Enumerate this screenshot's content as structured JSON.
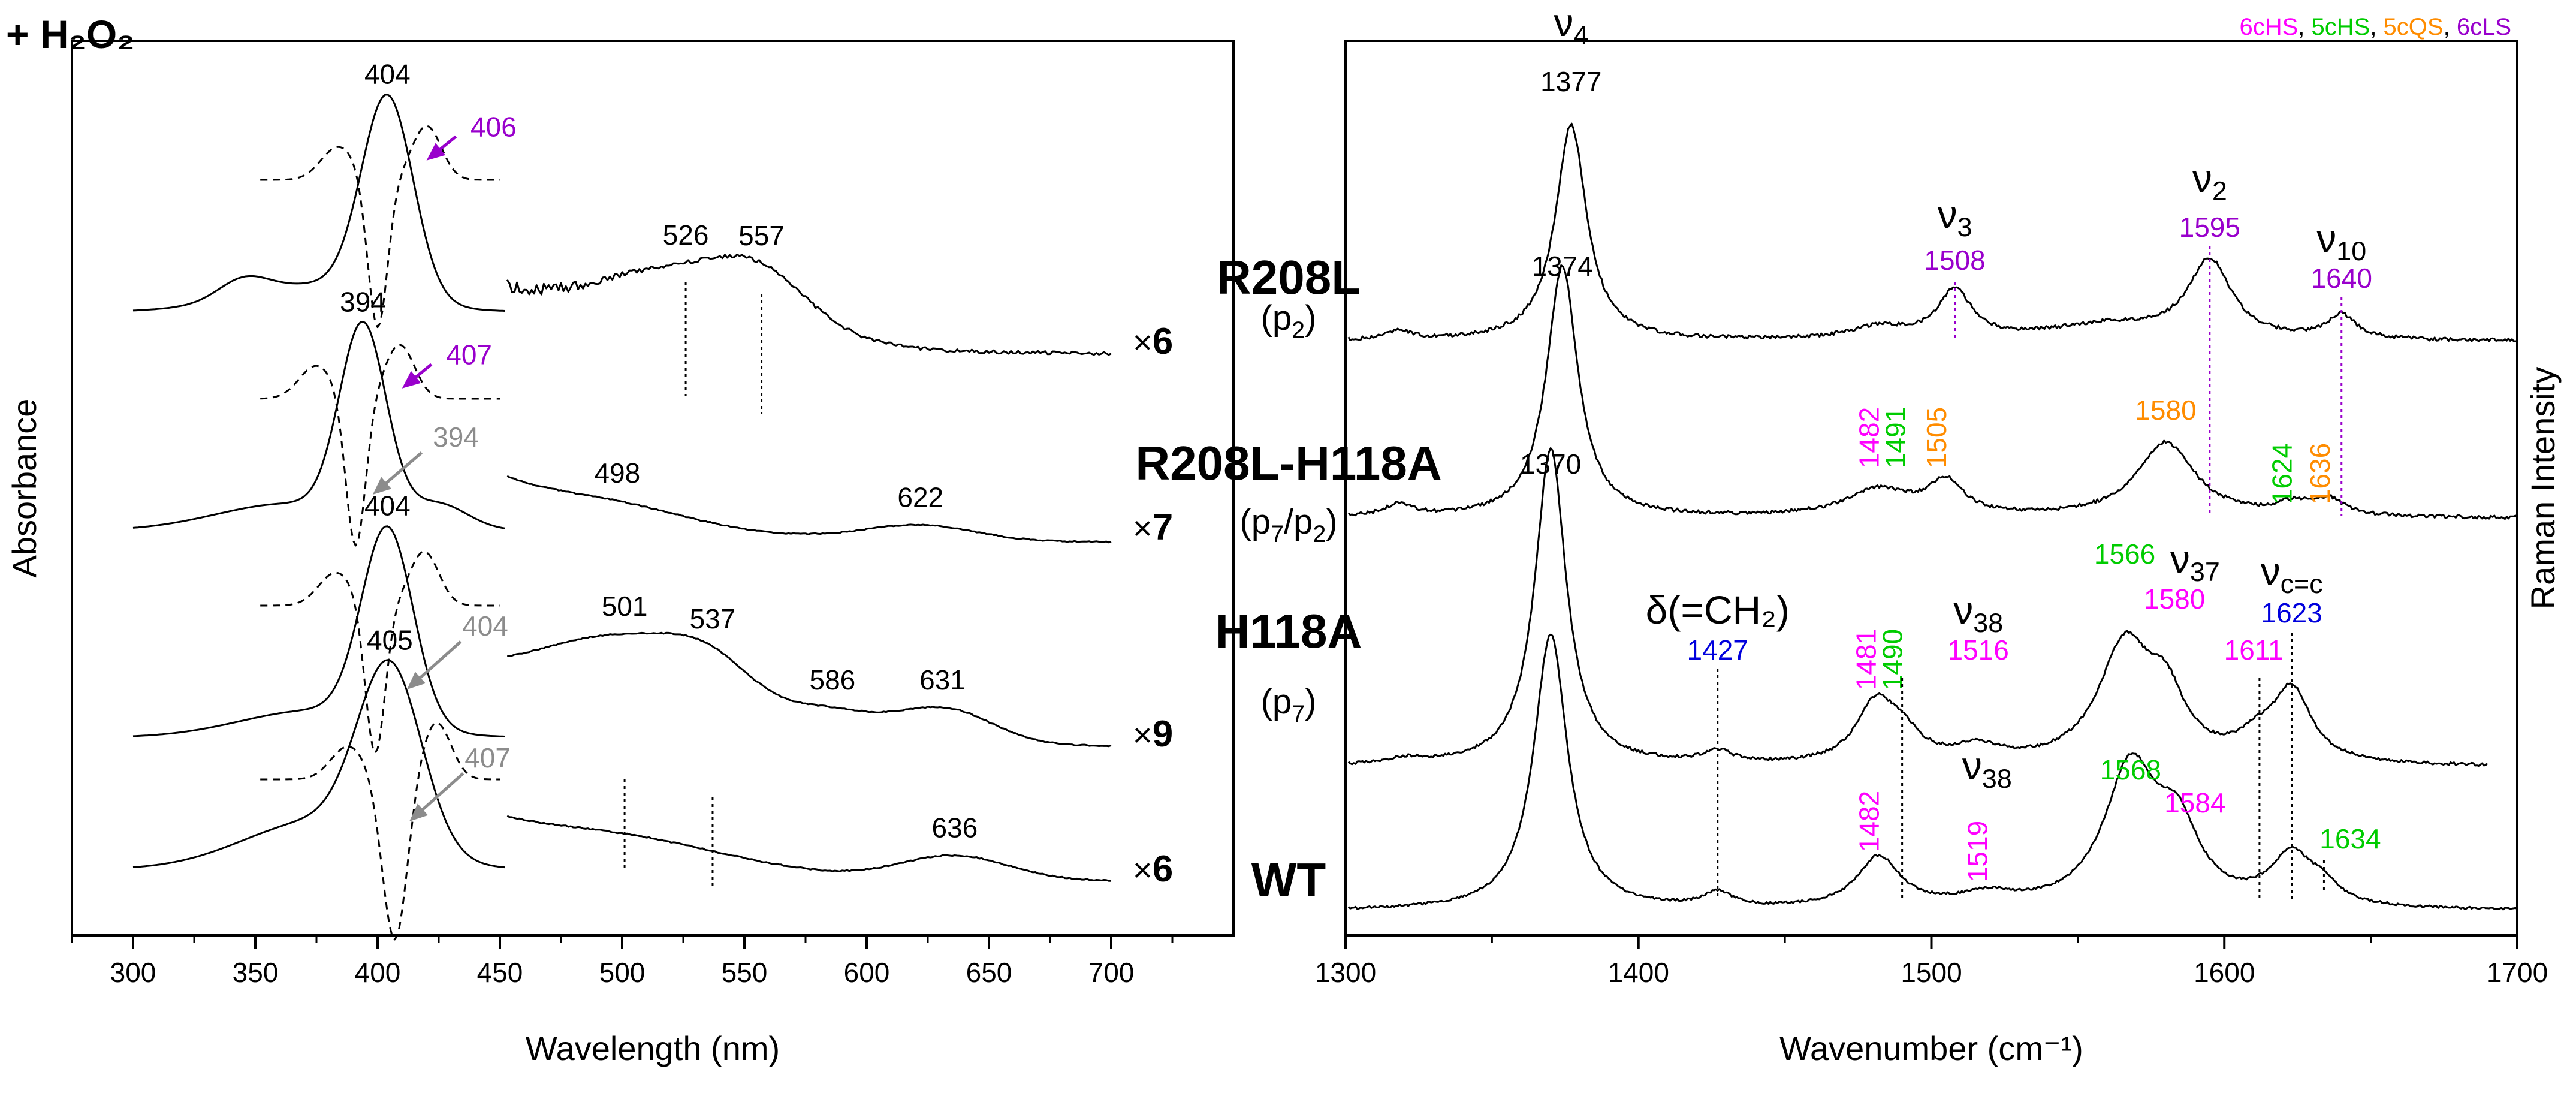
{
  "figure": {
    "reagent_label": "+ H₂O₂",
    "legend": [
      {
        "label": "6cHS",
        "color": "#ff00ff"
      },
      {
        "label": "5cHS",
        "color": "#00cc00"
      },
      {
        "label": "5cQS",
        "color": "#ff8c00"
      },
      {
        "label": "6cLS",
        "color": "#9900cc"
      }
    ],
    "legend_separator": ", ",
    "samples": [
      {
        "name": "R208L",
        "state": "(p₂)"
      },
      {
        "name": "R208L-H118A",
        "state": "(p₇/p₂)"
      },
      {
        "name": "H118A",
        "state": "(p₇)"
      },
      {
        "name": "WT",
        "state": ""
      }
    ],
    "multiplier_symbol": "×",
    "multipliers": [
      "6",
      "7",
      "9",
      "6"
    ],
    "colors": {
      "black": "#000000",
      "gray": "#8c8c8c",
      "blue": "#0000dd"
    }
  },
  "chart_data": [
    {
      "id": "absorbance",
      "type": "line",
      "xlabel": "Wavelength (nm)",
      "ylabel": "Absorbance",
      "xlim": [
        275,
        750
      ],
      "xticks": [
        "300",
        "350",
        "400",
        "450",
        "500",
        "550",
        "600",
        "650",
        "700"
      ],
      "series": [
        {
          "name": "R208L",
          "soret_peak": "404",
          "difference_peak": "406",
          "difference_color": "#9900cc",
          "visible_peaks": [
            "526",
            "557"
          ]
        },
        {
          "name": "R208L-H118A",
          "soret_peak": "394",
          "difference_peak": "407",
          "difference_color": "#9900cc",
          "second_difference_peak": "394",
          "visible_peaks": [
            "498",
            "622"
          ]
        },
        {
          "name": "H118A",
          "soret_peak": "404",
          "difference_peak": "404",
          "difference_color": "#8c8c8c",
          "visible_peaks": [
            "501",
            "537",
            "586",
            "631"
          ]
        },
        {
          "name": "WT",
          "soret_peak": "405",
          "difference_peak": "407",
          "difference_color": "#8c8c8c",
          "visible_peaks": [
            "636"
          ]
        }
      ]
    },
    {
      "id": "raman",
      "type": "line",
      "xlabel": "Wavenumber (cm⁻¹)",
      "ylabel": "Raman Intensity",
      "xlim": [
        1300,
        1700
      ],
      "xticks": [
        "1300",
        "1400",
        "1500",
        "1600",
        "1700"
      ],
      "series": [
        {
          "name": "R208L",
          "peaks": [
            {
              "label": "1377",
              "x": 1377,
              "color": "#000000",
              "mode": "ν4"
            },
            {
              "label": "1508",
              "x": 1508,
              "color": "#9900cc",
              "mode": "ν3"
            },
            {
              "label": "1595",
              "x": 1595,
              "color": "#9900cc",
              "mode": "ν2"
            },
            {
              "label": "1640",
              "x": 1640,
              "color": "#9900cc",
              "mode": "ν10"
            }
          ]
        },
        {
          "name": "R208L-H118A",
          "peaks": [
            {
              "label": "1374",
              "x": 1374,
              "color": "#000000"
            },
            {
              "label": "1482",
              "x": 1482,
              "color": "#ff00ff"
            },
            {
              "label": "1491",
              "x": 1491,
              "color": "#00cc00"
            },
            {
              "label": "1505",
              "x": 1505,
              "color": "#ff8c00"
            },
            {
              "label": "1580",
              "x": 1580,
              "color": "#ff8c00"
            },
            {
              "label": "1624",
              "x": 1624,
              "color": "#00cc00"
            },
            {
              "label": "1636",
              "x": 1636,
              "color": "#ff8c00"
            }
          ]
        },
        {
          "name": "H118A",
          "peaks": [
            {
              "label": "1370",
              "x": 1370,
              "color": "#000000"
            },
            {
              "label": "1427",
              "x": 1427,
              "color": "#0000dd",
              "mode": "δ(=CH₂)"
            },
            {
              "label": "1481",
              "x": 1481,
              "color": "#ff00ff"
            },
            {
              "label": "1490",
              "x": 1490,
              "color": "#00cc00"
            },
            {
              "label": "1516",
              "x": 1516,
              "color": "#ff00ff",
              "mode": "ν38"
            },
            {
              "label": "1566",
              "x": 1566,
              "color": "#00cc00"
            },
            {
              "label": "1580",
              "x": 1580,
              "color": "#ff00ff",
              "mode": "ν37"
            },
            {
              "label": "1611",
              "x": 1611,
              "color": "#ff00ff"
            },
            {
              "label": "1623",
              "x": 1623,
              "color": "#0000dd",
              "mode": "νc=c"
            }
          ]
        },
        {
          "name": "WT",
          "peaks": [
            {
              "label": "1482",
              "x": 1482,
              "color": "#ff00ff"
            },
            {
              "label": "1519",
              "x": 1519,
              "color": "#ff00ff",
              "mode": "ν38"
            },
            {
              "label": "1568",
              "x": 1568,
              "color": "#00cc00"
            },
            {
              "label": "1584",
              "x": 1584,
              "color": "#ff00ff"
            },
            {
              "label": "1634",
              "x": 1634,
              "color": "#00cc00"
            }
          ]
        }
      ]
    }
  ]
}
